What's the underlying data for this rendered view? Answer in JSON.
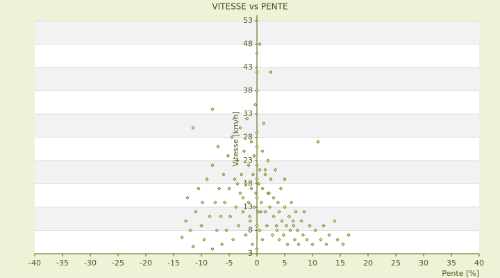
{
  "chart_data": {
    "type": "scatter",
    "title": "VITESSE vs PENTE",
    "x_label": "Pente [%]",
    "y_label": "Vitesse [km/h]",
    "xlim": [
      -40,
      40
    ],
    "xticks": [
      -40,
      -35,
      -30,
      -25,
      -20,
      -15,
      -10,
      -5,
      0,
      5,
      10,
      15,
      20,
      25,
      30,
      35,
      40
    ],
    "ylim": [
      3,
      53
    ],
    "yticks": [
      3,
      8,
      13,
      18,
      23,
      28,
      33,
      38,
      43,
      48,
      53
    ],
    "grid": true,
    "color": "#6b6b00",
    "x": [
      -13.5,
      -12.8,
      -12.5,
      -12,
      -11.5,
      -11,
      -10.5,
      -10,
      -9.8,
      -9.5,
      -9,
      -8.5,
      -8,
      -8,
      -7.5,
      -7.2,
      -7,
      -6.8,
      -6.5,
      -6.3,
      -6,
      -5.8,
      -5.5,
      -5.2,
      -5,
      -4.8,
      -4.5,
      -4.3,
      -4,
      -3.8,
      -3.5,
      -3.3,
      -3,
      -3,
      -2.8,
      -2.5,
      -2.3,
      -2,
      -2,
      -1.8,
      -1.5,
      -1.5,
      -1.2,
      -1,
      -1,
      -0.8,
      -0.7,
      -0.5,
      -0.5,
      -0.3,
      -0.2,
      0,
      0,
      0,
      0,
      0,
      0,
      0,
      0,
      0,
      0,
      0.2,
      0.3,
      0.5,
      0.5,
      0.5,
      0.8,
      1,
      1,
      1,
      1.2,
      1.5,
      1.5,
      1.8,
      2,
      2,
      2.3,
      2.5,
      2.5,
      2.8,
      3,
      3,
      3.3,
      3.5,
      3.8,
      4,
      4,
      4.3,
      4.5,
      4.8,
      5,
      5,
      5.3,
      5.5,
      5.8,
      6,
      6.2,
      6.5,
      6.8,
      7,
      7.3,
      7.5,
      8,
      8.3,
      8.5,
      9,
      9.5,
      10,
      10.5,
      11,
      11.5,
      12,
      12.5,
      13,
      14,
      14.5,
      15.5,
      16.5,
      -11.5,
      -8,
      -3.5,
      1.5,
      -2.5,
      0.7,
      2.2,
      -1.3,
      3.6,
      6.6
    ],
    "values": [
      6.5,
      10,
      15,
      8,
      4.5,
      12,
      17,
      9,
      14,
      6,
      19,
      11,
      4,
      22,
      14,
      8,
      26,
      17,
      11,
      5,
      20,
      14,
      8,
      24,
      17,
      11,
      28,
      6,
      19,
      13,
      23,
      9,
      16,
      30,
      20,
      12,
      25,
      7,
      18,
      32,
      14,
      22,
      10,
      27,
      17,
      5,
      20,
      13,
      24,
      35,
      16,
      4,
      9,
      15,
      19,
      22,
      26,
      29,
      38,
      42,
      46,
      12,
      18,
      48,
      21,
      8,
      14,
      25,
      17,
      6,
      31,
      12,
      20,
      9,
      16,
      23,
      13,
      42,
      19,
      7,
      15,
      11,
      21,
      9,
      14,
      6,
      12,
      17,
      10,
      7,
      13,
      19,
      9,
      5,
      11,
      8,
      14,
      10,
      6,
      12,
      8,
      5,
      10,
      7,
      12,
      6,
      9,
      5,
      8,
      27,
      6,
      9,
      5,
      7,
      10,
      6,
      5,
      7,
      30,
      34,
      18,
      21,
      15,
      12,
      16,
      11,
      8,
      9
    ]
  }
}
